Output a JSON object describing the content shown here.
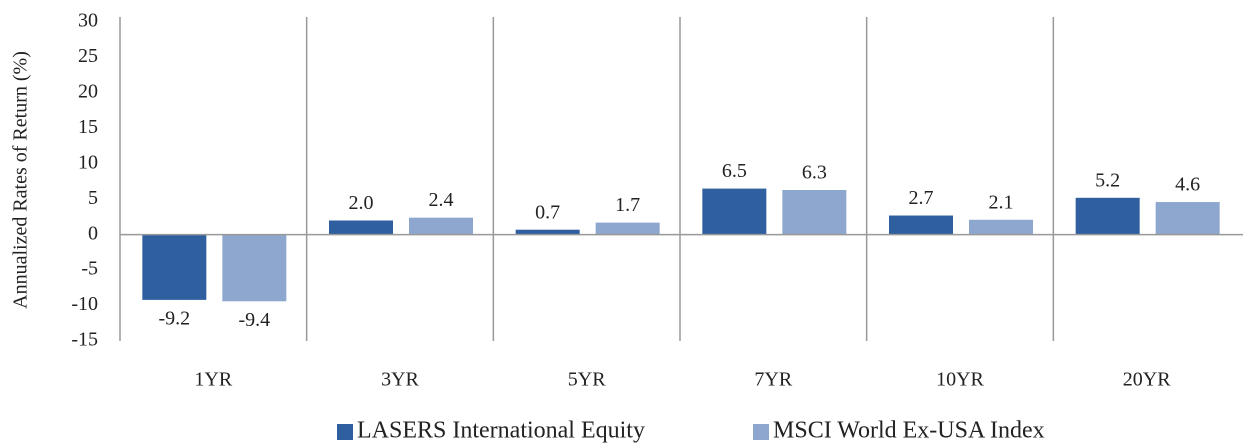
{
  "chart_data": {
    "type": "bar",
    "y_label": "Annualized Rates of Return (%)",
    "categories": [
      "1YR",
      "3YR",
      "5YR",
      "7YR",
      "10YR",
      "20YR"
    ],
    "series": [
      {
        "name": "LASERS International Equity",
        "color": "#2f5f9f",
        "values": [
          -9.2,
          2.0,
          0.7,
          6.5,
          2.7,
          5.2
        ],
        "value_labels": [
          "-9.2",
          "2.0",
          "0.7",
          "6.5",
          "2.7",
          "5.2"
        ]
      },
      {
        "name": "MSCI World Ex-USA Index",
        "color": "#8ea7cf",
        "values": [
          -9.4,
          2.4,
          1.7,
          6.3,
          2.1,
          4.6
        ],
        "value_labels": [
          "-9.4",
          "2.4",
          "1.7",
          "6.3",
          "2.1",
          "4.6"
        ]
      }
    ],
    "ylim": [
      -15,
      30
    ],
    "yticks": [
      -15,
      -10,
      -5,
      0,
      5,
      10,
      15,
      20,
      25,
      30
    ],
    "legend": "bottom"
  }
}
